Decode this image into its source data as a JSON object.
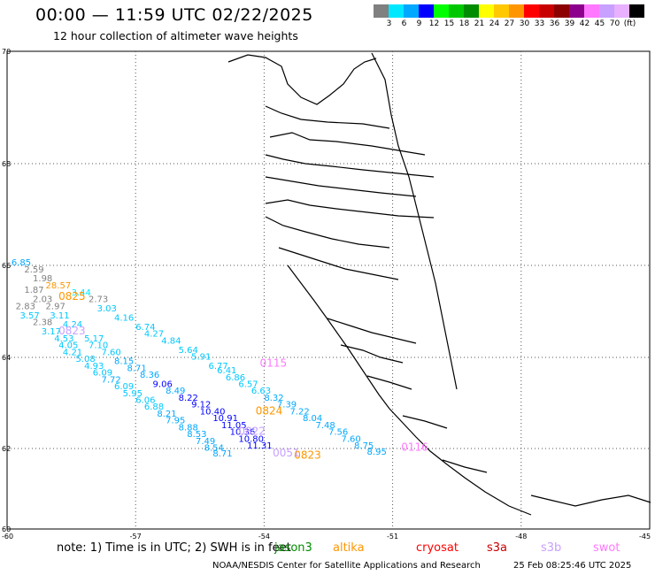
{
  "header": {
    "title": "00:00 — 11:59 UTC 02/22/2025",
    "subtitle": "12 hour collection of altimeter wave heights"
  },
  "legend": {
    "colors": [
      "#808080",
      "#00e8ff",
      "#00a8ff",
      "#0000ff",
      "#00ff00",
      "#00c800",
      "#008c00",
      "#ffff00",
      "#ffc800",
      "#ff9600",
      "#ff0000",
      "#c80000",
      "#8c0000",
      "#8c008c",
      "#ff78ff",
      "#c8a0ff",
      "#e8b0ff",
      "#000000"
    ],
    "labels": [
      "3",
      "6",
      "9",
      "12",
      "15",
      "18",
      "21",
      "24",
      "27",
      "30",
      "33",
      "36",
      "39",
      "42",
      "45",
      "70",
      "(ft)"
    ]
  },
  "axes": {
    "lat_labels": [
      "70",
      "68",
      "66",
      "64",
      "62",
      "60"
    ],
    "lon_labels": [
      "-60",
      "-57",
      "-54",
      "-51",
      "-48",
      "-45"
    ]
  },
  "chart_data": {
    "type": "scatter",
    "unit": "ft",
    "x_axis": "longitude",
    "y_axis": "latitude",
    "xlim": [
      -60,
      -45
    ],
    "ylim": [
      60,
      70
    ],
    "observations": [
      {
        "v": "6.85",
        "lon": -59.9,
        "lat": 66.0,
        "c": "#00a8ff"
      },
      {
        "v": "2.59",
        "lon": -59.6,
        "lat": 65.85,
        "c": "#808080"
      },
      {
        "v": "1.98",
        "lon": -59.4,
        "lat": 65.65,
        "c": "#808080"
      },
      {
        "v": "1.87",
        "lon": -59.6,
        "lat": 65.4,
        "c": "#808080"
      },
      {
        "v": "2.03",
        "lon": -59.4,
        "lat": 65.2,
        "c": "#808080"
      },
      {
        "v": "2.97",
        "lon": -59.1,
        "lat": 65.05,
        "c": "#808080"
      },
      {
        "v": "2.83",
        "lon": -59.8,
        "lat": 65.05,
        "c": "#808080"
      },
      {
        "v": "3.57",
        "lon": -59.7,
        "lat": 64.85,
        "c": "#00c8ff"
      },
      {
        "v": "3.11",
        "lon": -59.0,
        "lat": 64.85,
        "c": "#00c8ff"
      },
      {
        "v": "2.38",
        "lon": -59.4,
        "lat": 64.7,
        "c": "#808080"
      },
      {
        "v": "4.24",
        "lon": -58.7,
        "lat": 64.65,
        "c": "#00c8ff"
      },
      {
        "v": "3.17",
        "lon": -59.2,
        "lat": 64.5,
        "c": "#00c8ff"
      },
      {
        "v": "4.53",
        "lon": -58.9,
        "lat": 64.35,
        "c": "#00c8ff"
      },
      {
        "v": "5.17",
        "lon": -58.2,
        "lat": 64.35,
        "c": "#00c8ff"
      },
      {
        "v": "4.05",
        "lon": -58.8,
        "lat": 64.2,
        "c": "#00c8ff"
      },
      {
        "v": "7.10",
        "lon": -58.1,
        "lat": 64.2,
        "c": "#00c8ff"
      },
      {
        "v": "4.21",
        "lon": -58.7,
        "lat": 64.05,
        "c": "#00c8ff"
      },
      {
        "v": "7.60",
        "lon": -57.8,
        "lat": 64.05,
        "c": "#00c8ff"
      },
      {
        "v": "5.08",
        "lon": -58.4,
        "lat": 63.9,
        "c": "#00c8ff"
      },
      {
        "v": "8.15",
        "lon": -57.5,
        "lat": 63.85,
        "c": "#00a8ff"
      },
      {
        "v": "4.93",
        "lon": -58.2,
        "lat": 63.75,
        "c": "#00c8ff"
      },
      {
        "v": "8.71",
        "lon": -57.2,
        "lat": 63.7,
        "c": "#00a8ff"
      },
      {
        "v": "6.09",
        "lon": -58.0,
        "lat": 63.6,
        "c": "#00c8ff"
      },
      {
        "v": "8.36",
        "lon": -56.9,
        "lat": 63.55,
        "c": "#00a8ff"
      },
      {
        "v": "7.72",
        "lon": -57.8,
        "lat": 63.45,
        "c": "#00a8ff"
      },
      {
        "v": "9.06",
        "lon": -56.6,
        "lat": 63.35,
        "c": "#0000ff"
      },
      {
        "v": "6.09",
        "lon": -57.5,
        "lat": 63.3,
        "c": "#00c8ff"
      },
      {
        "v": "8.49",
        "lon": -56.3,
        "lat": 63.2,
        "c": "#00a8ff"
      },
      {
        "v": "5.95",
        "lon": -57.3,
        "lat": 63.15,
        "c": "#00c8ff"
      },
      {
        "v": "8.22",
        "lon": -56.0,
        "lat": 63.05,
        "c": "#0000ff"
      },
      {
        "v": "6.06",
        "lon": -57.0,
        "lat": 63.0,
        "c": "#00c8ff"
      },
      {
        "v": "9.12",
        "lon": -55.7,
        "lat": 62.9,
        "c": "#0000ff"
      },
      {
        "v": "6.88",
        "lon": -56.8,
        "lat": 62.85,
        "c": "#00c8ff"
      },
      {
        "v": "10.40",
        "lon": -55.5,
        "lat": 62.75,
        "c": "#0000ff"
      },
      {
        "v": "8.21",
        "lon": -56.5,
        "lat": 62.7,
        "c": "#00a8ff"
      },
      {
        "v": "10.91",
        "lon": -55.2,
        "lat": 62.6,
        "c": "#0000ff"
      },
      {
        "v": "7.95",
        "lon": -56.3,
        "lat": 62.55,
        "c": "#00a8ff"
      },
      {
        "v": "11.05",
        "lon": -55.0,
        "lat": 62.45,
        "c": "#0000ff"
      },
      {
        "v": "8.88",
        "lon": -56.0,
        "lat": 62.4,
        "c": "#00a8ff"
      },
      {
        "v": "10.36",
        "lon": -54.8,
        "lat": 62.3,
        "c": "#0000ff"
      },
      {
        "v": "8.53",
        "lon": -55.8,
        "lat": 62.25,
        "c": "#00a8ff"
      },
      {
        "v": "10.80",
        "lon": -54.6,
        "lat": 62.15,
        "c": "#0000ff"
      },
      {
        "v": "7.49",
        "lon": -55.6,
        "lat": 62.1,
        "c": "#00a8ff"
      },
      {
        "v": "11.31",
        "lon": -54.4,
        "lat": 62.0,
        "c": "#0000ff"
      },
      {
        "v": "8.54",
        "lon": -55.4,
        "lat": 61.95,
        "c": "#00a8ff"
      },
      {
        "v": "8.71",
        "lon": -55.2,
        "lat": 61.8,
        "c": "#00a8ff"
      },
      {
        "v": "3.03",
        "lon": -57.9,
        "lat": 65.0,
        "c": "#00c8ff"
      },
      {
        "v": "4.16",
        "lon": -57.5,
        "lat": 64.8,
        "c": "#00c8ff"
      },
      {
        "v": "6.74",
        "lon": -57.0,
        "lat": 64.6,
        "c": "#00c8ff"
      },
      {
        "v": "4.27",
        "lon": -56.8,
        "lat": 64.45,
        "c": "#00c8ff"
      },
      {
        "v": "4.84",
        "lon": -56.4,
        "lat": 64.3,
        "c": "#00c8ff"
      },
      {
        "v": "5.64",
        "lon": -56.0,
        "lat": 64.1,
        "c": "#00c8ff"
      },
      {
        "v": "5.91",
        "lon": -55.7,
        "lat": 63.95,
        "c": "#00c8ff"
      },
      {
        "v": "6.77",
        "lon": -55.3,
        "lat": 63.75,
        "c": "#00c8ff"
      },
      {
        "v": "6.41",
        "lon": -55.1,
        "lat": 63.65,
        "c": "#00c8ff"
      },
      {
        "v": "6.86",
        "lon": -54.9,
        "lat": 63.5,
        "c": "#00c8ff"
      },
      {
        "v": "6.57",
        "lon": -54.6,
        "lat": 63.35,
        "c": "#00c8ff"
      },
      {
        "v": "6.63",
        "lon": -54.3,
        "lat": 63.2,
        "c": "#00c8ff"
      },
      {
        "v": "8.32",
        "lon": -54.0,
        "lat": 63.05,
        "c": "#00a8ff"
      },
      {
        "v": "7.39",
        "lon": -53.7,
        "lat": 62.9,
        "c": "#00a8ff"
      },
      {
        "v": "7.22",
        "lon": -53.4,
        "lat": 62.75,
        "c": "#00a8ff"
      },
      {
        "v": "8.04",
        "lon": -53.1,
        "lat": 62.6,
        "c": "#00a8ff"
      },
      {
        "v": "7.48",
        "lon": -52.8,
        "lat": 62.45,
        "c": "#00a8ff"
      },
      {
        "v": "7.56",
        "lon": -52.5,
        "lat": 62.3,
        "c": "#00a8ff"
      },
      {
        "v": "7.60",
        "lon": -52.2,
        "lat": 62.15,
        "c": "#00a8ff"
      },
      {
        "v": "8.75",
        "lon": -51.9,
        "lat": 62.0,
        "c": "#00a8ff"
      },
      {
        "v": "8.95",
        "lon": -51.6,
        "lat": 61.85,
        "c": "#00a8ff"
      },
      {
        "v": "28.57",
        "lon": -59.1,
        "lat": 65.5,
        "c": "#ff9600"
      },
      {
        "v": "3.44",
        "lon": -58.5,
        "lat": 65.35,
        "c": "#00e8ff"
      },
      {
        "v": "2.73",
        "lon": -58.1,
        "lat": 65.2,
        "c": "#808080"
      },
      {
        "v": "0825",
        "lon": -58.8,
        "lat": 65.25,
        "c": "#ff9600",
        "pid": true
      },
      {
        "v": "0823",
        "lon": -58.8,
        "lat": 64.5,
        "c": "#c8a0ff",
        "pid": true
      },
      {
        "v": "0115",
        "lon": -54.1,
        "lat": 63.8,
        "c": "#ff78ff",
        "pid": true
      },
      {
        "v": "0824",
        "lon": -54.2,
        "lat": 62.75,
        "c": "#ff9600",
        "pid": true
      },
      {
        "v": "0822",
        "lon": -54.6,
        "lat": 62.3,
        "c": "#c8a0ff",
        "pid": true
      },
      {
        "v": "0051",
        "lon": -53.8,
        "lat": 61.8,
        "c": "#c8a0ff",
        "pid": true
      },
      {
        "v": "0823",
        "lon": -53.3,
        "lat": 61.75,
        "c": "#ff9600",
        "pid": true
      },
      {
        "v": "0116",
        "lon": -50.8,
        "lat": 61.95,
        "c": "#ff78ff",
        "pid": true
      }
    ]
  },
  "footer": {
    "note": "note: 1) Time is in UTC; 2) SWH is in feet",
    "satellites": [
      {
        "name": "jason3",
        "color": "#008c00"
      },
      {
        "name": "altika",
        "color": "#ff9600"
      },
      {
        "name": "cryosat",
        "color": "#ff0000"
      },
      {
        "name": "s3a",
        "color": "#c80000"
      },
      {
        "name": "s3b",
        "color": "#c8a0ff"
      },
      {
        "name": "swot",
        "color": "#ff78ff"
      }
    ],
    "credit": "NOAA/NESDIS Center for Satellite Applications and Research",
    "timestamp": "25 Feb 08:25:46 UTC 2025"
  }
}
